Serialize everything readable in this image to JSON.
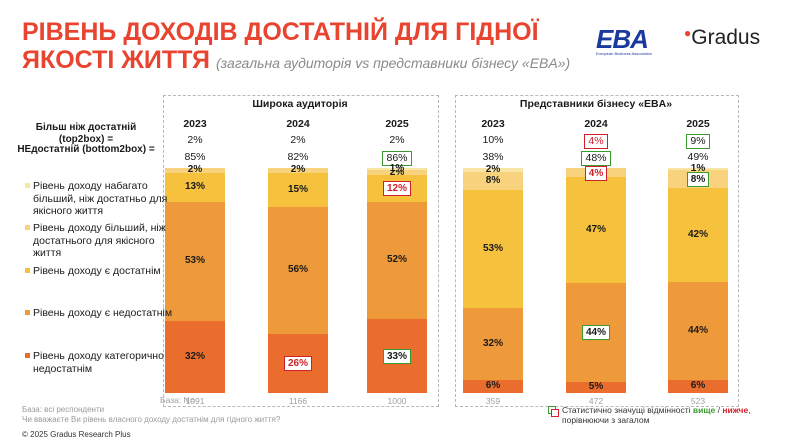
{
  "title": {
    "line1": "РІВЕНЬ ДОХОДІВ ДОСТАТНІЙ ДЛЯ ГІДНОЇ",
    "line2": "ЯКОСТІ ЖИТТЯ",
    "subtitle": "(загальна аудиторія vs представники бізнесу «EBA»)"
  },
  "logos": {
    "eba": "EBA",
    "eba_caption": "European Business Association",
    "gradus": "Gradus"
  },
  "panels": [
    {
      "title": "Широка аудиторія"
    },
    {
      "title": "Представники бізнесу «EBA»"
    }
  ],
  "row_labels": {
    "top2box": "Більш ніж достатній (top2box) =",
    "bottom2box": "НЕдостатній (bottom2box) ="
  },
  "legend": [
    {
      "label": "Рівень доходу набагато більший, ніж достатньо для якісного життя",
      "color": "#fae6a4"
    },
    {
      "label": "Рівень доходу більший, ніж достатнього для якісного життя",
      "color": "#f8d27c"
    },
    {
      "label": "Рівень доходу є достатнім",
      "color": "#f6c23e"
    },
    {
      "label": "Рівень доходу є недостатнім",
      "color": "#ef9a3a"
    },
    {
      "label": "Рівень доходу категорично недостатнім",
      "color": "#ea6d2e"
    }
  ],
  "base_label": "База: N=",
  "notes": {
    "line1": "База: всі респонденти",
    "line2": "Чи вважаєте Ви рівень власного доходу достатнім для гідного життя?"
  },
  "significance_note": {
    "part1": "Статистично значущі відмінності ",
    "higher": "вище",
    "sep": " / ",
    "lower": "нижче",
    "part2": ",",
    "line2": "порівнюючи з загалом"
  },
  "copyright": "© 2025 Gradus Research Plus",
  "colors": {
    "title": "#e8442f",
    "much_more": "#fae6a4",
    "more": "#f8d27c",
    "sufficient": "#f6c23e",
    "insufficient": "#ef9a3a",
    "cat_insufficient": "#ea6d2e",
    "higher": "#3a9a2f",
    "lower": "#d0202a"
  },
  "chart_data": {
    "type": "bar",
    "stacked": true,
    "normalized_percent": true,
    "groups": [
      {
        "name": "Широка аудиторія",
        "categories": [
          "2023",
          "2024",
          "2025"
        ],
        "top2box": [
          "2%",
          "2%",
          "2%"
        ],
        "bottom2box": [
          "85%",
          "82%",
          "86%"
        ],
        "bottom2box_flags": [
          "",
          "",
          "higher"
        ],
        "base_n": [
          "1091",
          "1166",
          "1000"
        ],
        "series": [
          {
            "name": "Рівень доходу категорично недостатнім",
            "values": [
              32,
              26,
              33
            ],
            "labels": [
              "32%",
              "26%",
              "33%"
            ],
            "flags": [
              "",
              "lower",
              "higher"
            ]
          },
          {
            "name": "Рівень доходу є недостатнім",
            "values": [
              53,
              56,
              52
            ],
            "labels": [
              "53%",
              "56%",
              "52%"
            ],
            "flags": [
              "",
              "",
              ""
            ]
          },
          {
            "name": "Рівень доходу є достатнім",
            "values": [
              13,
              15,
              12
            ],
            "labels": [
              "13%",
              "15%",
              "12%"
            ],
            "flags": [
              "",
              "",
              "lower"
            ]
          },
          {
            "name": "Рівень доходу більший, ніж достатнього для якісного життя",
            "values": [
              2,
              2,
              2
            ],
            "labels": [
              "2%",
              "2%",
              "2%"
            ],
            "flags": [
              "",
              "",
              ""
            ]
          },
          {
            "name": "Рівень доходу набагато більший, ніж достатньо для якісного життя",
            "values": [
              0,
              0,
              1
            ],
            "labels": [
              "",
              "",
              "1%"
            ],
            "flags": [
              "",
              "",
              ""
            ]
          }
        ]
      },
      {
        "name": "Представники бізнесу «EBA»",
        "categories": [
          "2023",
          "2024",
          "2025"
        ],
        "top2box": [
          "10%",
          "4%",
          "9%"
        ],
        "top2box_flags": [
          "",
          "lower",
          "higher"
        ],
        "bottom2box": [
          "38%",
          "48%",
          "49%"
        ],
        "bottom2box_flags": [
          "",
          "higher",
          ""
        ],
        "base_n": [
          "359",
          "472",
          "523"
        ],
        "series": [
          {
            "name": "Рівень доходу категорично недостатнім",
            "values": [
              6,
              5,
              6
            ],
            "labels": [
              "6%",
              "5%",
              "6%"
            ],
            "flags": [
              "",
              "",
              ""
            ]
          },
          {
            "name": "Рівень доходу є недостатнім",
            "values": [
              32,
              44,
              44
            ],
            "labels": [
              "32%",
              "44%",
              "44%"
            ],
            "flags": [
              "",
              "higher",
              ""
            ]
          },
          {
            "name": "Рівень доходу є достатнім",
            "values": [
              53,
              47,
              42
            ],
            "labels": [
              "53%",
              "47%",
              "42%"
            ],
            "flags": [
              "",
              "",
              ""
            ]
          },
          {
            "name": "Рівень доходу більший, ніж достатнього для якісного життя",
            "values": [
              8,
              4,
              8
            ],
            "labels": [
              "8%",
              "4%",
              "8%"
            ],
            "flags": [
              "",
              "lower",
              "higher"
            ]
          },
          {
            "name": "Рівень доходу набагато більший, ніж достатньо для якісного життя",
            "values": [
              2,
              0,
              1
            ],
            "labels": [
              "2%",
              "",
              "1%"
            ],
            "flags": [
              "",
              "",
              ""
            ]
          }
        ]
      }
    ]
  }
}
